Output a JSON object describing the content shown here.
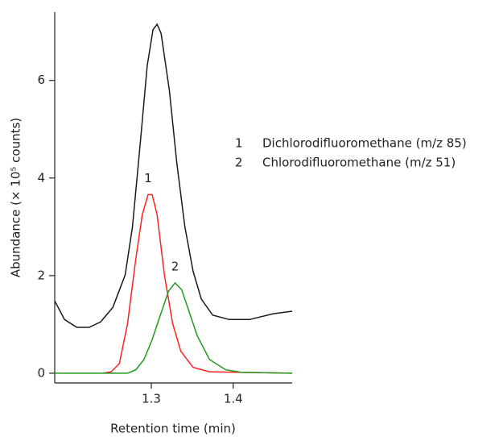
{
  "chart_data": {
    "type": "line",
    "x_label": "Retention time (min)",
    "y_label": "Abundance (× 10⁵ counts)",
    "xlim": [
      1.182,
      1.472
    ],
    "ylim": [
      -0.2,
      7.4
    ],
    "xticks": [
      1.3,
      1.4
    ],
    "yticks": [
      0,
      2,
      4,
      6
    ],
    "series": [
      {
        "color": "#1a1a1a",
        "x": [
          1.182,
          1.194,
          1.209,
          1.224,
          1.238,
          1.253,
          1.268,
          1.277,
          1.287,
          1.295,
          1.302,
          1.307,
          1.312,
          1.322,
          1.331,
          1.341,
          1.351,
          1.361,
          1.375,
          1.395,
          1.42,
          1.449,
          1.472
        ],
        "values": [
          1.48,
          1.1,
          0.94,
          0.94,
          1.05,
          1.35,
          2.01,
          3.0,
          4.81,
          6.3,
          7.04,
          7.15,
          6.96,
          5.8,
          4.32,
          3.0,
          2.09,
          1.52,
          1.19,
          1.1,
          1.1,
          1.22,
          1.27
        ]
      },
      {
        "label": "1",
        "name": "Dichlorodifluoromethane (m/z 85)",
        "color": "#ff2020",
        "x": [
          1.241,
          1.251,
          1.261,
          1.271,
          1.281,
          1.289,
          1.296,
          1.301,
          1.307,
          1.316,
          1.326,
          1.336,
          1.351,
          1.371,
          1.472
        ],
        "values": [
          0,
          0.03,
          0.2,
          1.02,
          2.34,
          3.25,
          3.66,
          3.66,
          3.25,
          2.01,
          1.02,
          0.45,
          0.12,
          0.03,
          0
        ]
      },
      {
        "label": "2",
        "name": "Chlorodifluoromethane (m/z 51)",
        "color": "#1e9a1e",
        "x": [
          1.182,
          1.271,
          1.281,
          1.291,
          1.301,
          1.311,
          1.321,
          1.329,
          1.337,
          1.346,
          1.356,
          1.371,
          1.391,
          1.41,
          1.472
        ],
        "values": [
          0,
          0,
          0.07,
          0.28,
          0.69,
          1.19,
          1.68,
          1.85,
          1.71,
          1.27,
          0.77,
          0.28,
          0.07,
          0.02,
          0
        ]
      }
    ]
  }
}
